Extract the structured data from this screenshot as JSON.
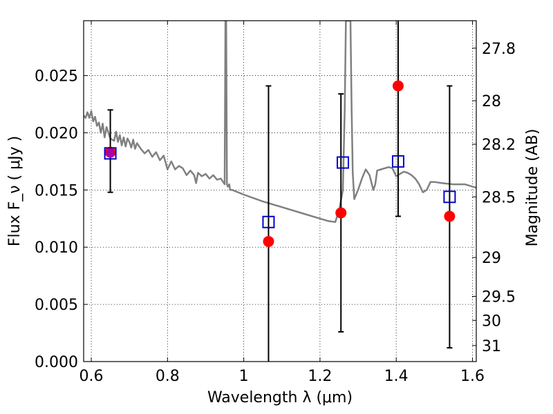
{
  "chart_data": {
    "type": "scatter",
    "title": "",
    "xlabel": "Wavelength  λ (μm)",
    "ylabel": "Flux  F_ν  ( μJy )",
    "ylabel_right": "Magnitude (AB)",
    "xlim": [
      0.58,
      1.61
    ],
    "ylim": [
      0.0,
      0.0298
    ],
    "grid": true,
    "x_ticks": [
      0.6,
      0.8,
      1.0,
      1.2,
      1.4,
      1.6
    ],
    "x_tick_labels": [
      "0.6",
      "0.8",
      "1",
      "1.2",
      "1.4",
      "1.6"
    ],
    "y_ticks": [
      0.0,
      0.005,
      0.01,
      0.015,
      0.02,
      0.025
    ],
    "y_tick_labels": [
      "0.000",
      "0.005",
      "0.010",
      "0.015",
      "0.020",
      "0.025"
    ],
    "right_ticks": [
      {
        "label": "27.8",
        "flux": 0.0274
      },
      {
        "label": "28",
        "flux": 0.0228
      },
      {
        "label": "28.2",
        "flux": 0.019
      },
      {
        "label": "28.5",
        "flux": 0.0144
      },
      {
        "label": "29",
        "flux": 0.0091
      },
      {
        "label": "29.5",
        "flux": 0.0057
      },
      {
        "label": "30",
        "flux": 0.0036
      },
      {
        "label": "31",
        "flux": 0.0014
      }
    ],
    "series": [
      {
        "kind": "model-spectrum",
        "color": "#808080",
        "x": [
          0.58,
          0.585,
          0.59,
          0.595,
          0.6,
          0.605,
          0.61,
          0.615,
          0.62,
          0.625,
          0.63,
          0.635,
          0.64,
          0.65,
          0.66,
          0.665,
          0.67,
          0.675,
          0.68,
          0.685,
          0.69,
          0.695,
          0.7,
          0.705,
          0.71,
          0.715,
          0.72,
          0.73,
          0.74,
          0.75,
          0.76,
          0.77,
          0.78,
          0.79,
          0.8,
          0.81,
          0.82,
          0.83,
          0.84,
          0.85,
          0.86,
          0.87,
          0.875,
          0.88,
          0.89,
          0.9,
          0.91,
          0.92,
          0.93,
          0.94,
          0.95,
          0.952,
          0.954,
          0.956,
          0.958,
          0.96,
          0.962,
          0.964,
          0.97,
          1.0,
          1.05,
          1.1,
          1.15,
          1.2,
          1.22,
          1.24,
          1.25,
          1.26,
          1.265,
          1.268,
          1.271,
          1.275,
          1.28,
          1.283,
          1.286,
          1.29,
          1.3,
          1.31,
          1.32,
          1.33,
          1.34,
          1.345,
          1.35,
          1.36,
          1.38,
          1.39,
          1.4,
          1.41,
          1.42,
          1.43,
          1.44,
          1.45,
          1.46,
          1.47,
          1.48,
          1.49,
          1.5,
          1.52,
          1.55,
          1.58,
          1.6,
          1.61
        ],
        "y": [
          0.0215,
          0.0213,
          0.0218,
          0.0213,
          0.0219,
          0.021,
          0.0214,
          0.0206,
          0.0209,
          0.02,
          0.0208,
          0.0196,
          0.0205,
          0.0195,
          0.0193,
          0.0201,
          0.0192,
          0.0198,
          0.0189,
          0.0196,
          0.0188,
          0.0195,
          0.0192,
          0.0187,
          0.0194,
          0.0186,
          0.0191,
          0.0186,
          0.0182,
          0.0185,
          0.0179,
          0.0183,
          0.0176,
          0.018,
          0.0168,
          0.0175,
          0.0168,
          0.0171,
          0.0169,
          0.0163,
          0.0167,
          0.0163,
          0.0156,
          0.0165,
          0.0162,
          0.0164,
          0.016,
          0.0163,
          0.0159,
          0.016,
          0.0155,
          0.0298,
          0.0298,
          0.0155,
          0.0153,
          0.0154,
          0.0155,
          0.015,
          0.015,
          0.0146,
          0.014,
          0.0135,
          0.013,
          0.0125,
          0.0123,
          0.0122,
          0.0132,
          0.015,
          0.022,
          0.0298,
          0.0298,
          0.0298,
          0.0298,
          0.022,
          0.0165,
          0.0142,
          0.015,
          0.016,
          0.0168,
          0.0163,
          0.015,
          0.0155,
          0.0167,
          0.0168,
          0.017,
          0.0169,
          0.0162,
          0.0164,
          0.0166,
          0.0165,
          0.0163,
          0.016,
          0.0155,
          0.0148,
          0.015,
          0.0157,
          0.0157,
          0.0156,
          0.0155,
          0.0155,
          0.0153,
          0.0152
        ]
      },
      {
        "kind": "observed",
        "color": "#ff0000",
        "x": [
          0.65,
          1.065,
          1.255,
          1.405,
          1.54
        ],
        "y": [
          0.0183,
          0.0105,
          0.013,
          0.0241,
          0.0127
        ],
        "err_low": [
          0.0148,
          0.0,
          0.0026,
          0.0127,
          0.0012
        ],
        "err_high": [
          0.022,
          0.0241,
          0.0234,
          0.0298,
          0.0241
        ]
      },
      {
        "kind": "model-synthetic",
        "color": "#0000cc",
        "x": [
          0.65,
          1.065,
          1.26,
          1.405,
          1.54
        ],
        "y": [
          0.0182,
          0.0122,
          0.0174,
          0.0175,
          0.0144
        ]
      }
    ]
  }
}
